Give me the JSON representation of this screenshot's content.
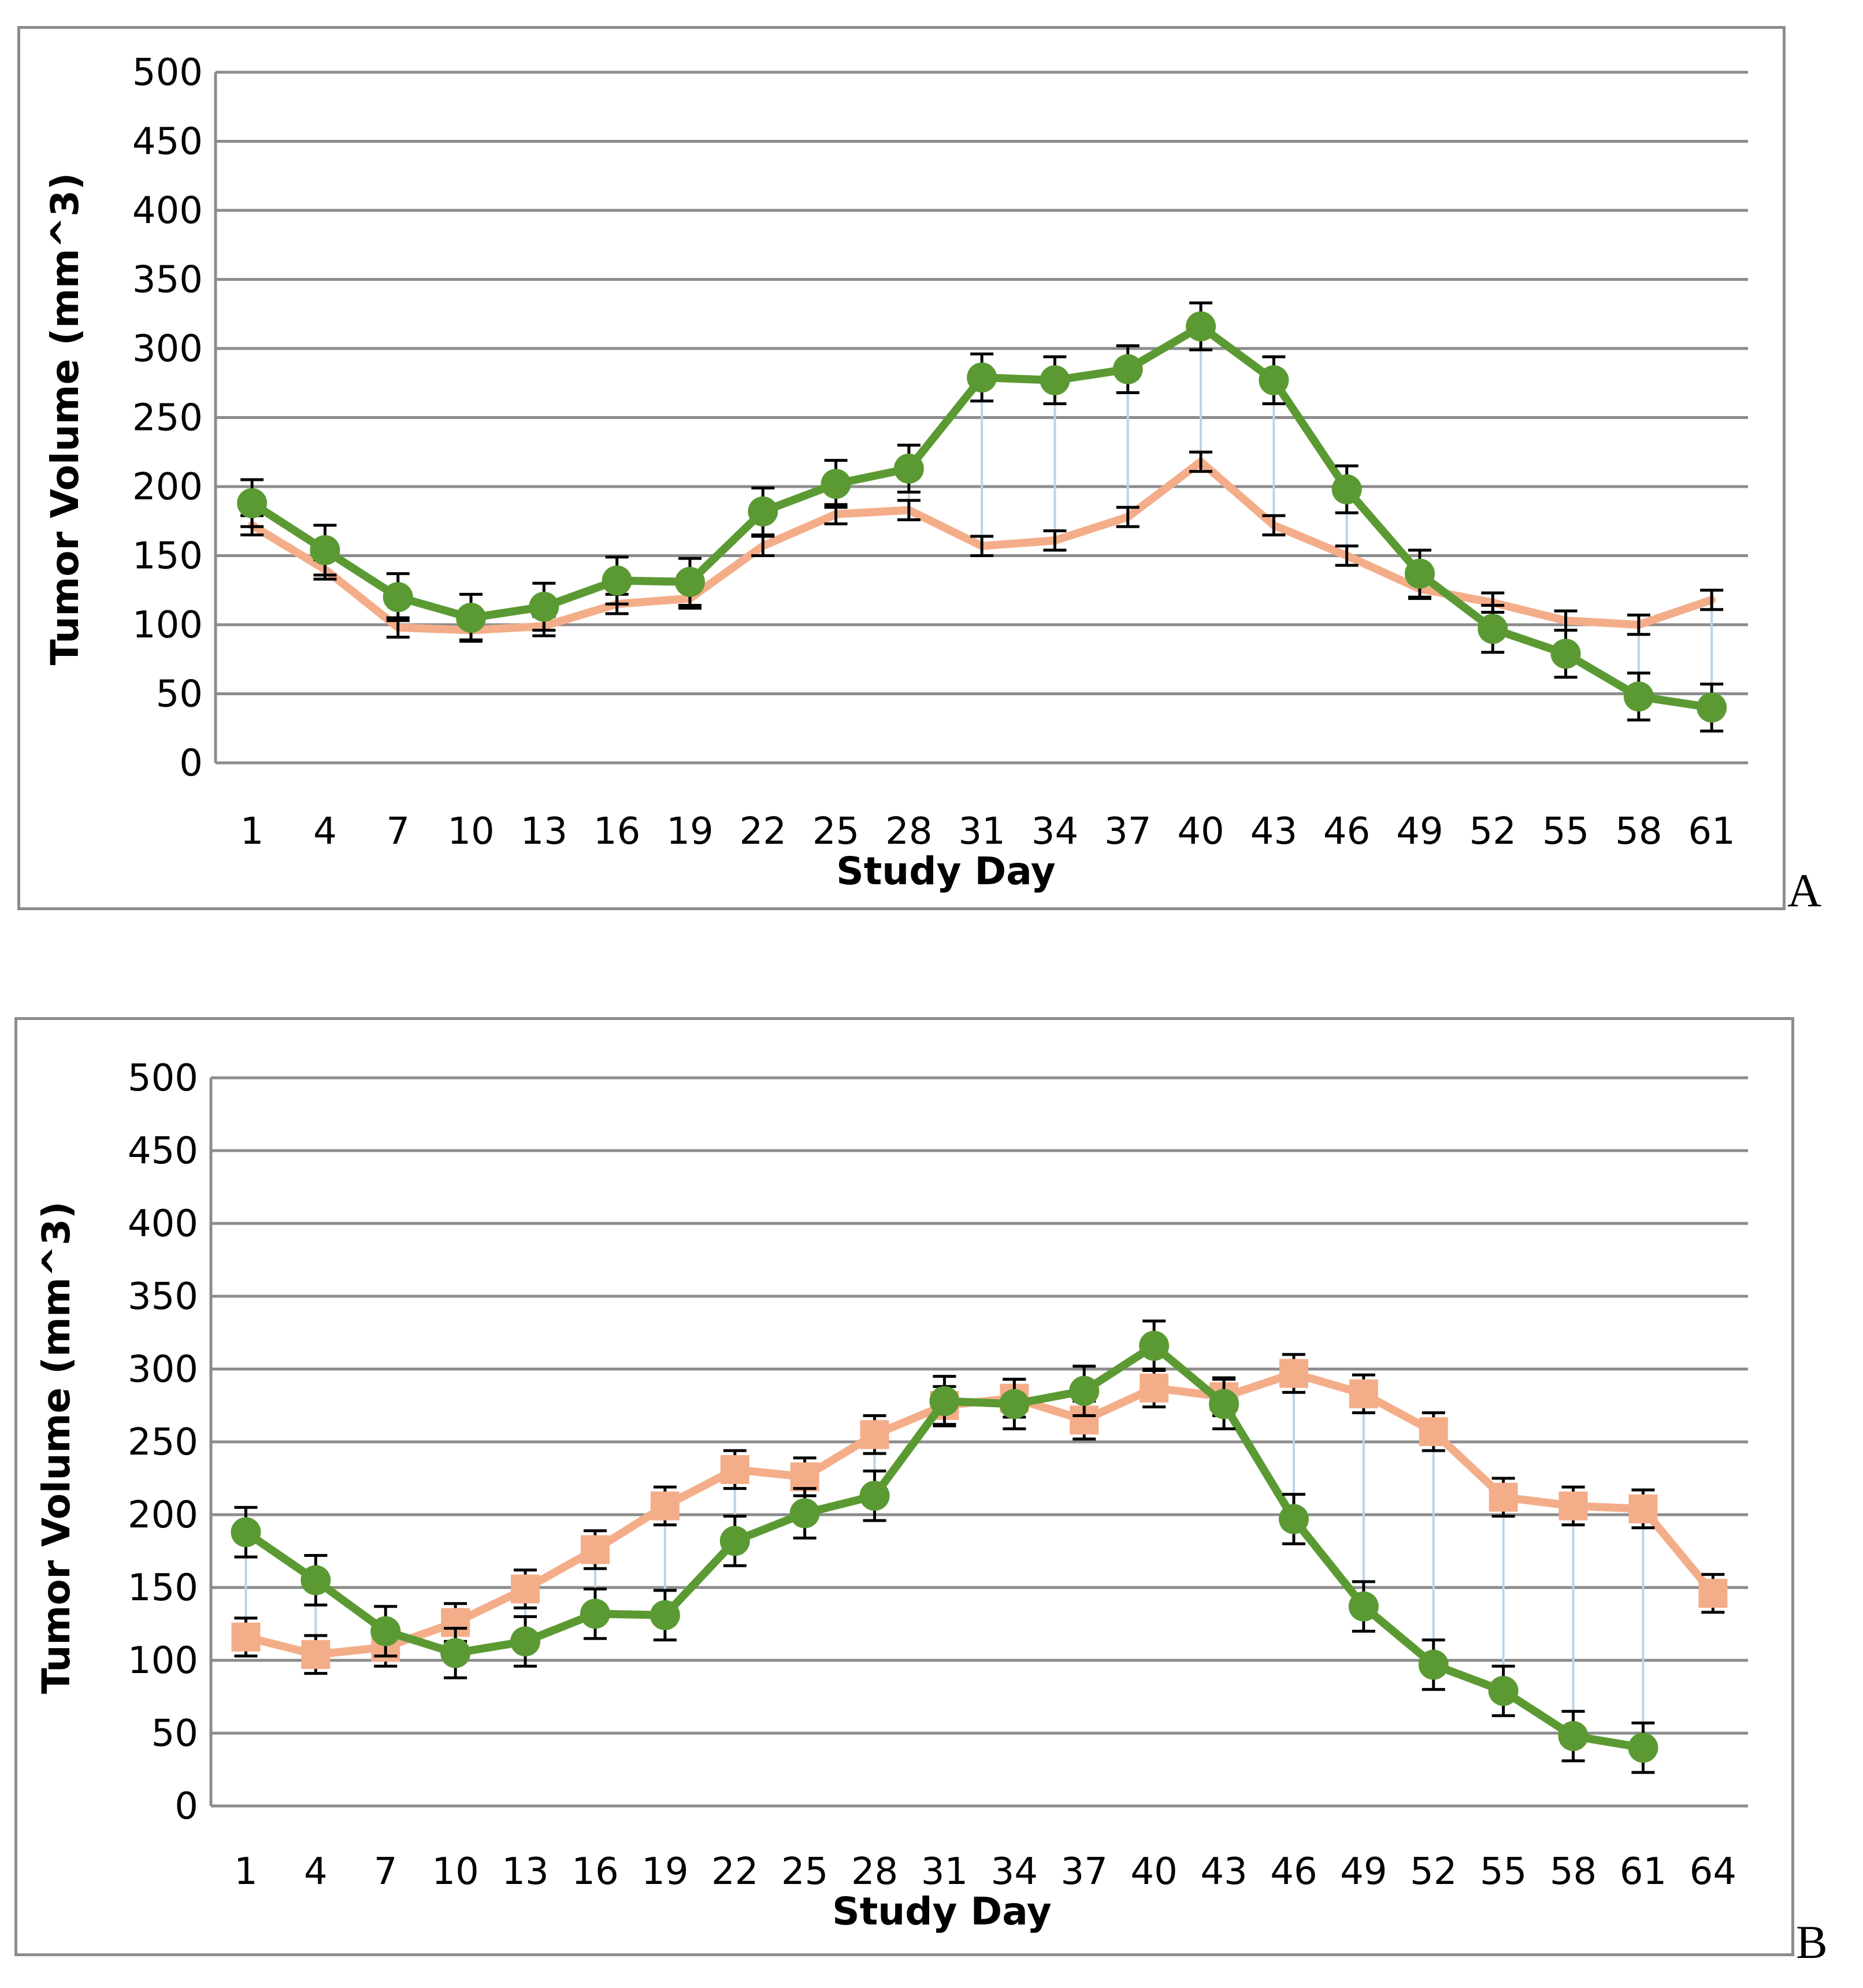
{
  "colors": {
    "series_green": "#5b9a33",
    "series_orange": "#f4ad89",
    "drop_line": "#b8d4ea",
    "gridline": "#8c8c8c",
    "error_bar": "#000000",
    "panel_border": "#8c8c8c"
  },
  "chart_data": [
    {
      "type": "line",
      "panel_label": "A",
      "xlabel": "Study Day",
      "ylabel": "Tumor Volume (mm^3)",
      "ylim": [
        0,
        500
      ],
      "ytick_step": 50,
      "yticks": [
        "0",
        "50",
        "100",
        "150",
        "200",
        "250",
        "300",
        "350",
        "400",
        "450",
        "500"
      ],
      "categories": [
        "1",
        "4",
        "7",
        "10",
        "13",
        "16",
        "19",
        "22",
        "25",
        "28",
        "31",
        "34",
        "37",
        "40",
        "43",
        "46",
        "49",
        "52",
        "55",
        "58",
        "61"
      ],
      "grid": true,
      "drop_lines": true,
      "series": [
        {
          "name": "green-circles",
          "marker": "circle",
          "color": "#5b9a33",
          "values": [
            188,
            154,
            120,
            105,
            113,
            132,
            131,
            182,
            202,
            213,
            279,
            277,
            285,
            316,
            277,
            198,
            137,
            97,
            79,
            48,
            40
          ],
          "errors": [
            17,
            18,
            17,
            17,
            17,
            17,
            17,
            17,
            17,
            17,
            17,
            17,
            17,
            17,
            17,
            17,
            17,
            17,
            17,
            17,
            17
          ]
        },
        {
          "name": "orange-line",
          "marker": "none",
          "color": "#f4ad89",
          "values": [
            172,
            140,
            98,
            96,
            99,
            115,
            119,
            157,
            180,
            183,
            157,
            161,
            178,
            218,
            172,
            150,
            126,
            116,
            103,
            100,
            118
          ],
          "errors": [
            7,
            7,
            7,
            7,
            7,
            7,
            7,
            7,
            7,
            7,
            7,
            7,
            7,
            7,
            7,
            7,
            7,
            7,
            7,
            7,
            7
          ]
        }
      ]
    },
    {
      "type": "line",
      "panel_label": "B",
      "xlabel": "Study Day",
      "ylabel": "Tumor Volume (mm^3)",
      "ylim": [
        0,
        500
      ],
      "ytick_step": 50,
      "yticks": [
        "0",
        "50",
        "100",
        "150",
        "200",
        "250",
        "300",
        "350",
        "400",
        "450",
        "500"
      ],
      "categories": [
        "1",
        "4",
        "7",
        "10",
        "13",
        "16",
        "19",
        "22",
        "25",
        "28",
        "31",
        "34",
        "37",
        "40",
        "43",
        "46",
        "49",
        "52",
        "55",
        "58",
        "61",
        "64"
      ],
      "grid": true,
      "drop_lines": true,
      "series": [
        {
          "name": "green-circles",
          "marker": "circle",
          "color": "#5b9a33",
          "values": [
            188,
            155,
            120,
            105,
            113,
            132,
            131,
            182,
            201,
            213,
            278,
            276,
            285,
            316,
            276,
            197,
            137,
            97,
            79,
            48,
            40,
            null
          ],
          "errors": [
            17,
            17,
            17,
            17,
            17,
            17,
            17,
            17,
            17,
            17,
            17,
            17,
            17,
            17,
            17,
            17,
            17,
            17,
            17,
            17,
            17,
            null
          ]
        },
        {
          "name": "orange-squares",
          "marker": "square",
          "color": "#f4ad89",
          "values": [
            116,
            104,
            109,
            126,
            149,
            176,
            206,
            231,
            226,
            255,
            275,
            280,
            265,
            287,
            281,
            297,
            283,
            257,
            212,
            206,
            204,
            146
          ],
          "errors": [
            13,
            13,
            13,
            13,
            13,
            13,
            13,
            13,
            13,
            13,
            13,
            13,
            13,
            13,
            13,
            13,
            13,
            13,
            13,
            13,
            13,
            13
          ]
        }
      ]
    }
  ]
}
